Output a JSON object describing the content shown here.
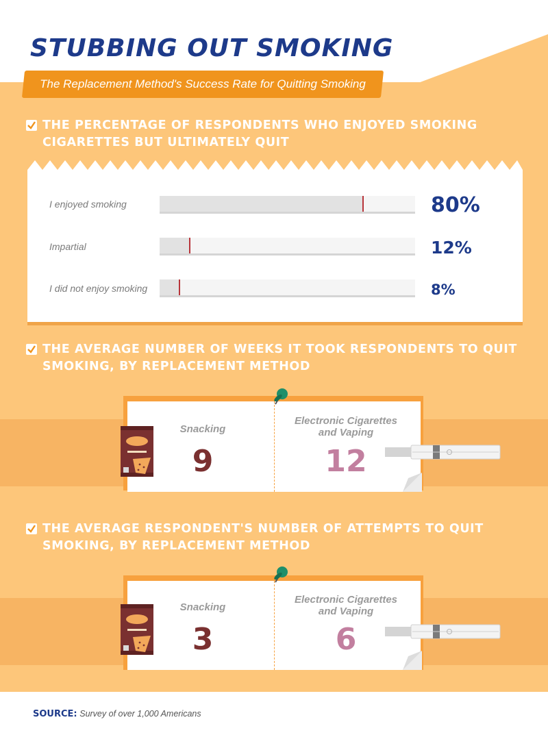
{
  "header": {
    "title": "STUBBING OUT SMOKING",
    "subtitle": "The Replacement Method's Success Rate for Quitting Smoking"
  },
  "section1": {
    "heading": "THE PERCENTAGE OF RESPONDENTS WHO ENJOYED SMOKING CIGARETTES BUT ULTIMATELY QUIT",
    "bars": [
      {
        "label": "I enjoyed smoking",
        "value": 80,
        "display": "80%"
      },
      {
        "label": "Impartial",
        "value": 12,
        "display": "12%"
      },
      {
        "label": "I did not enjoy smoking",
        "value": 8,
        "display": "8%"
      }
    ]
  },
  "section2": {
    "heading": "THE AVERAGE NUMBER OF WEEKS IT TOOK RESPONDENTS TO QUIT SMOKING, BY REPLACEMENT METHOD",
    "left_label": "Snacking",
    "left_value": "9",
    "right_label_line1": "Electronic Cigarettes",
    "right_label_line2": "and Vaping",
    "right_value": "12"
  },
  "section3": {
    "heading": "THE AVERAGE RESPONDENT'S NUMBER OF ATTEMPTS TO QUIT SMOKING, BY REPLACEMENT METHOD",
    "left_label": "Snacking",
    "left_value": "3",
    "right_label_line1": "Electronic Cigarettes",
    "right_label_line2": "and Vaping",
    "right_value": "6"
  },
  "footer": {
    "source_label": "SOURCE:",
    "source_text": "Survey of over 1,000 Americans"
  },
  "colors": {
    "navy": "#1d3a8a",
    "orange": "#f0941d",
    "peach": "#fdc67a",
    "snack_number": "#7a3030",
    "vape_number": "#c27f9f",
    "bar_marker": "#b8343a"
  }
}
